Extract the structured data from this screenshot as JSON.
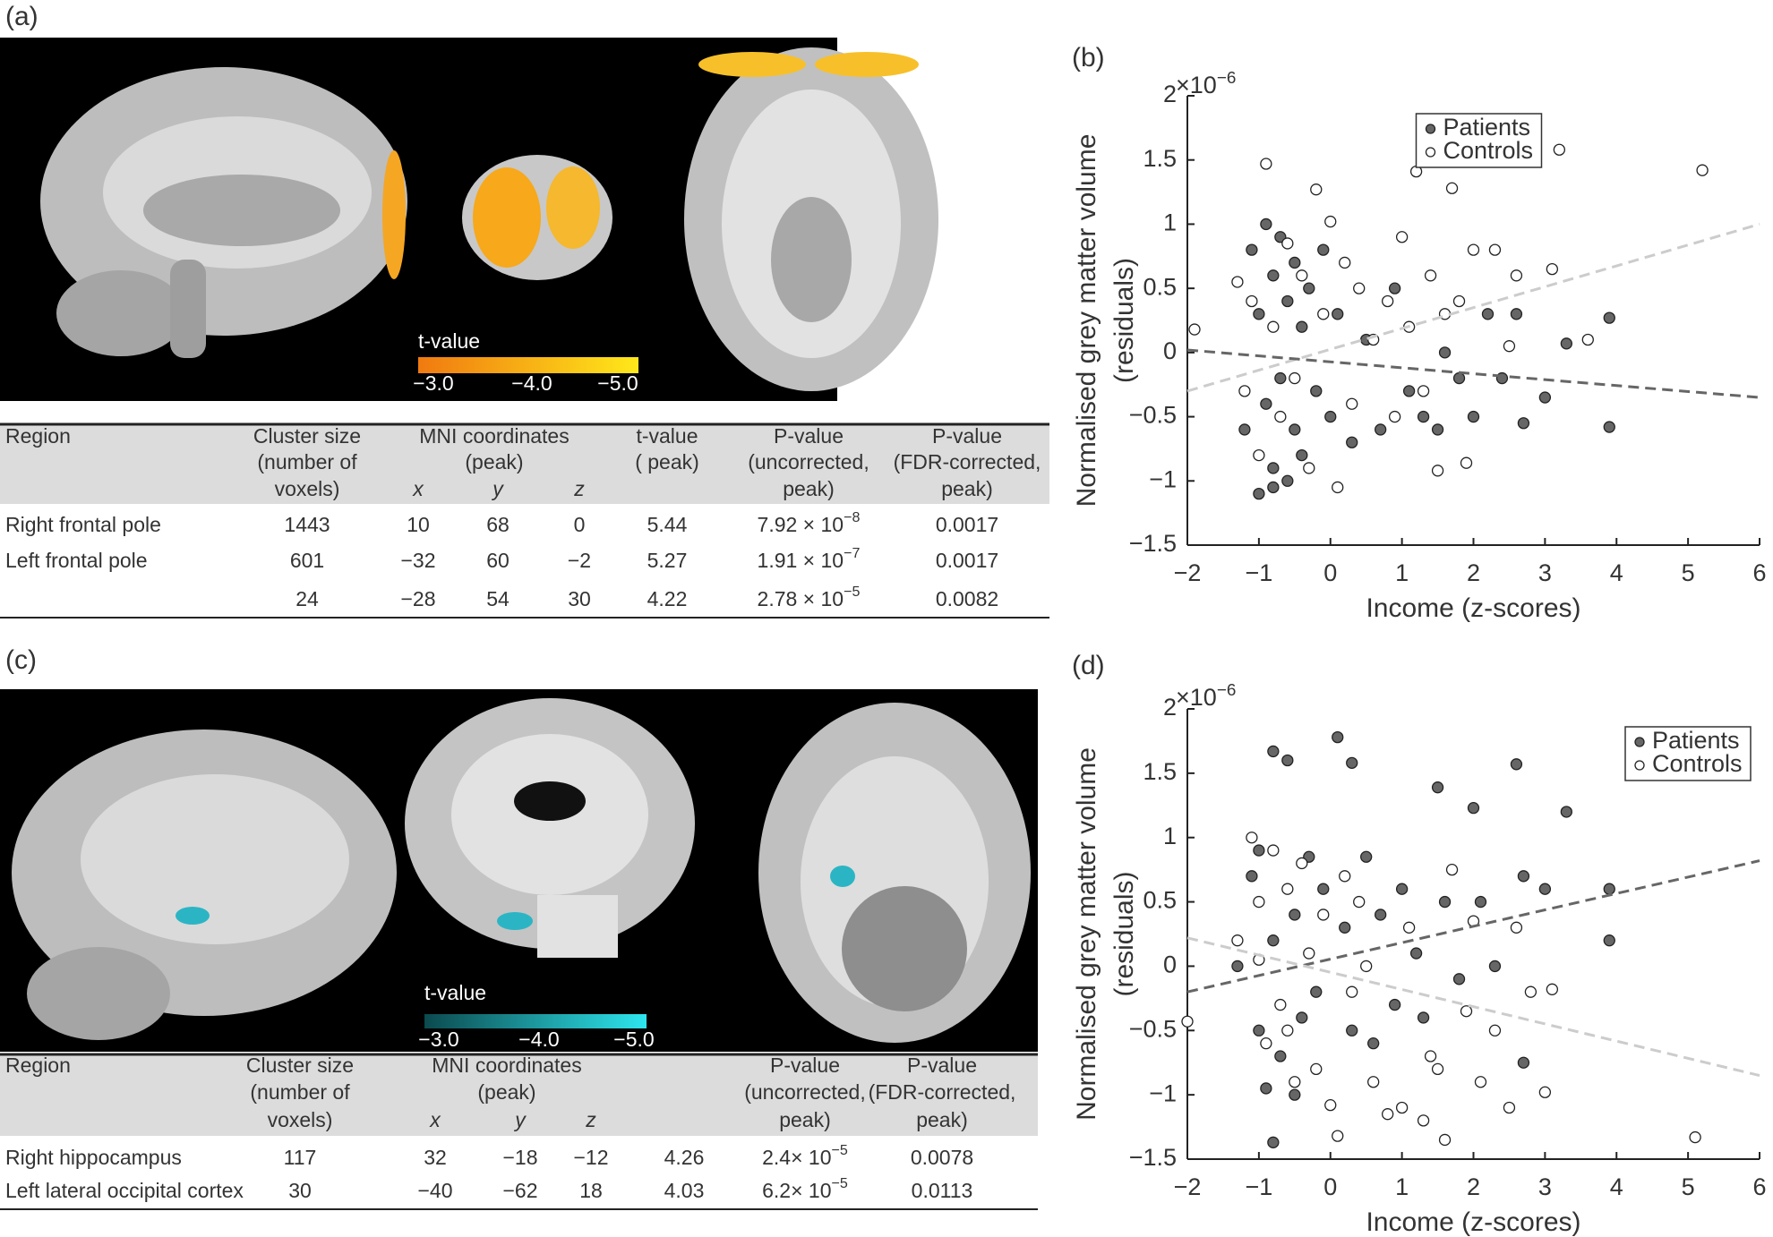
{
  "figure": {
    "panel_a": {
      "label": "(a)",
      "colorbar": {
        "title": "t-value",
        "ticks": [
          "−3.0",
          "−4.0",
          "−5.0"
        ]
      },
      "table": {
        "header": {
          "region": "Region",
          "cluster": [
            "Cluster size",
            "(number of",
            "voxels)"
          ],
          "mni": [
            "MNI coordinates",
            "(peak)"
          ],
          "mni_axes": [
            "x",
            "y",
            "z"
          ],
          "t": [
            "t-value",
            "( peak)"
          ],
          "p_unc": [
            "P-value",
            "(uncorrected,",
            "peak)"
          ],
          "p_fdr": [
            "P-value",
            "(FDR-corrected,",
            "peak)"
          ]
        },
        "rows": [
          [
            "Right frontal pole",
            "1443",
            "10",
            "68",
            "0",
            "5.44",
            {
              "base": "7.92 × 10",
              "exp": "−8"
            },
            "0.0017"
          ],
          [
            "Left frontal pole",
            "601",
            "−32",
            "60",
            "−2",
            "5.27",
            {
              "base": "1.91 × 10",
              "exp": "−7"
            },
            "0.0017"
          ],
          [
            null,
            "24",
            "−28",
            "54",
            "30",
            "4.22",
            {
              "base": "2.78 × 10",
              "exp": "−5"
            },
            "0.0082"
          ]
        ]
      }
    },
    "panel_c": {
      "label": "(c)",
      "colorbar": {
        "title": "t-value",
        "ticks": [
          "−3.0",
          "−4.0",
          "−5.0"
        ]
      },
      "table": {
        "header": {
          "region": "Region",
          "cluster": [
            "Cluster size",
            "(number of",
            "voxels)"
          ],
          "mni": [
            "MNI coordinates",
            "(peak)"
          ],
          "mni_axes": [
            "x",
            "y",
            "z"
          ],
          "p_unc": [
            "P-value",
            "(uncorrected,",
            "peak)"
          ],
          "p_fdr": [
            "P-value",
            "(FDR-corrected,",
            "peak)"
          ]
        },
        "rows": [
          [
            "Right hippocampus",
            "117",
            "32",
            "−18",
            "−12",
            "4.26",
            {
              "base": "2.4× 10",
              "exp": "−5"
            },
            "0.0078"
          ],
          [
            "Left lateral occipital cortex",
            "30",
            "−40",
            "−62",
            "18",
            "4.03",
            {
              "base": "6.2× 10",
              "exp": "−5"
            },
            "0.0113"
          ]
        ]
      }
    }
  },
  "chart_data": [
    {
      "type": "scatter",
      "panel_label": "(b)",
      "ylabel": [
        "Normalised grey matter volume",
        "(residuals)"
      ],
      "xlabel": "Income (z-scores)",
      "multiplier": {
        "base": "×10",
        "exp": "−6"
      },
      "xlim": [
        -2,
        6
      ],
      "ylim": [
        -1.5,
        2
      ],
      "xticks": [
        {
          "value": -2,
          "label": "−2"
        },
        {
          "value": -1,
          "label": "−1"
        },
        0,
        1,
        2,
        3,
        4,
        5,
        6
      ],
      "yticks": [
        {
          "value": -1.5,
          "label": "−1.5"
        },
        {
          "value": -1,
          "label": "−1"
        },
        {
          "value": -0.5,
          "label": "−0.5"
        },
        0,
        0.5,
        1,
        1.5,
        2
      ],
      "legend": "upper center",
      "series": [
        {
          "name": "Patients",
          "color": "#666666",
          "x": [
            -1.2,
            -1.1,
            -1.0,
            -1.0,
            -0.9,
            -0.9,
            -0.8,
            -0.8,
            -0.7,
            -0.7,
            -0.6,
            -0.6,
            -0.5,
            -0.5,
            -0.4,
            -0.4,
            -0.3,
            -0.2,
            -0.1,
            0.0,
            0.1,
            0.3,
            0.5,
            0.7,
            0.9,
            1.1,
            1.3,
            1.5,
            1.6,
            1.8,
            2.0,
            2.2,
            2.4,
            2.6,
            2.7,
            3.0,
            3.3,
            3.9,
            3.9,
            -0.8
          ],
          "values": [
            -0.6,
            0.8,
            -1.1,
            0.3,
            1.0,
            -0.4,
            0.6,
            -0.9,
            0.9,
            -0.2,
            0.4,
            -1.0,
            0.7,
            -0.6,
            0.2,
            -0.8,
            0.5,
            -0.3,
            0.8,
            -0.5,
            0.3,
            -0.7,
            0.1,
            -0.6,
            0.5,
            -0.3,
            -0.5,
            -0.6,
            0.0,
            -0.2,
            -0.5,
            0.3,
            -0.2,
            0.3,
            -0.55,
            -0.35,
            0.07,
            0.27,
            -0.58,
            -1.05
          ]
        },
        {
          "name": "Controls",
          "color": "#ffffff",
          "x": [
            -1.9,
            -1.3,
            -1.2,
            -1.1,
            -1.0,
            -0.9,
            -0.8,
            -0.7,
            -0.6,
            -0.5,
            -0.4,
            -0.3,
            -0.2,
            -0.1,
            0.0,
            0.1,
            0.2,
            0.3,
            0.4,
            0.6,
            0.8,
            0.9,
            1.0,
            1.1,
            1.2,
            1.3,
            1.4,
            1.5,
            1.6,
            1.7,
            1.9,
            2.0,
            2.3,
            2.5,
            2.6,
            3.1,
            3.2,
            3.6,
            5.2,
            1.8
          ],
          "values": [
            0.18,
            0.55,
            -0.3,
            0.4,
            -0.8,
            1.47,
            0.2,
            -0.5,
            0.85,
            -0.2,
            0.6,
            -0.9,
            1.27,
            0.3,
            1.02,
            -1.05,
            0.7,
            -0.4,
            0.5,
            0.1,
            0.4,
            -0.5,
            0.9,
            0.2,
            1.41,
            -0.3,
            0.6,
            -0.92,
            0.3,
            1.28,
            -0.86,
            0.8,
            0.8,
            0.05,
            0.6,
            0.65,
            1.58,
            0.1,
            1.42,
            0.4
          ]
        }
      ],
      "fit_lines": [
        {
          "color": "#cccccc",
          "x": [
            -2,
            6
          ],
          "values": [
            -0.3,
            1.0
          ]
        },
        {
          "color": "#666666",
          "x": [
            -2,
            6
          ],
          "values": [
            0.02,
            -0.35
          ]
        }
      ]
    },
    {
      "type": "scatter",
      "panel_label": "(d)",
      "ylabel": [
        "Normalised grey matter volume",
        "(residuals)"
      ],
      "xlabel": "Income (z-scores)",
      "multiplier": {
        "base": "×10",
        "exp": "−6"
      },
      "xlim": [
        -2,
        6
      ],
      "ylim": [
        -1.5,
        2
      ],
      "xticks": [
        {
          "value": -2,
          "label": "−2"
        },
        {
          "value": -1,
          "label": "−1"
        },
        0,
        1,
        2,
        3,
        4,
        5,
        6
      ],
      "yticks": [
        {
          "value": -1.5,
          "label": "−1.5"
        },
        {
          "value": -1,
          "label": "−1"
        },
        {
          "value": -0.5,
          "label": "−0.5"
        },
        0,
        0.5,
        1,
        1.5,
        2
      ],
      "legend": "upper right",
      "series": [
        {
          "name": "Patients",
          "color": "#666666",
          "x": [
            -1.3,
            -1.1,
            -1.0,
            -1.0,
            -0.9,
            -0.8,
            -0.8,
            -0.7,
            -0.6,
            -0.5,
            -0.4,
            -0.3,
            -0.2,
            -0.1,
            0.1,
            0.2,
            0.3,
            0.5,
            0.7,
            0.9,
            1.0,
            1.2,
            1.3,
            1.5,
            1.6,
            1.8,
            2.0,
            2.1,
            2.3,
            2.6,
            2.7,
            2.7,
            3.0,
            3.3,
            3.9,
            3.9,
            0.3,
            -0.5,
            0.6,
            -0.8
          ],
          "values": [
            0.0,
            0.7,
            -0.5,
            0.9,
            -0.95,
            1.67,
            0.2,
            -0.7,
            1.6,
            0.4,
            -0.4,
            0.85,
            -0.2,
            0.6,
            1.78,
            0.3,
            -0.5,
            0.85,
            0.4,
            -0.3,
            0.6,
            0.1,
            -0.4,
            1.39,
            0.5,
            -0.1,
            1.23,
            0.5,
            0.0,
            1.57,
            -0.75,
            0.7,
            0.6,
            1.2,
            0.6,
            0.2,
            1.58,
            -1.0,
            -0.6,
            -1.37
          ]
        },
        {
          "name": "Controls",
          "color": "#ffffff",
          "x": [
            -2.0,
            -1.3,
            -1.1,
            -1.0,
            -0.9,
            -0.8,
            -0.7,
            -0.6,
            -0.5,
            -0.4,
            -0.3,
            -0.2,
            -0.1,
            0.0,
            0.1,
            0.2,
            0.3,
            0.4,
            0.6,
            0.8,
            1.0,
            1.1,
            1.3,
            1.4,
            1.6,
            1.7,
            1.9,
            2.1,
            2.3,
            2.5,
            2.6,
            2.8,
            3.1,
            3.0,
            5.1,
            -1.0,
            -0.6,
            0.5,
            1.5,
            2.0
          ],
          "values": [
            -0.43,
            0.2,
            1.0,
            0.5,
            -0.6,
            0.9,
            -0.3,
            0.6,
            -0.9,
            0.8,
            0.1,
            -0.8,
            0.4,
            -1.08,
            -1.32,
            0.7,
            -0.2,
            0.5,
            -0.9,
            -1.15,
            -1.1,
            0.3,
            -1.2,
            -0.7,
            -1.35,
            0.75,
            -0.35,
            -0.9,
            -0.5,
            -1.1,
            0.3,
            -0.2,
            -0.18,
            -0.98,
            -1.33,
            0.05,
            -0.5,
            0.0,
            -0.8,
            0.35
          ]
        }
      ],
      "fit_lines": [
        {
          "color": "#666666",
          "x": [
            -2,
            6
          ],
          "values": [
            -0.2,
            0.82
          ]
        },
        {
          "color": "#cccccc",
          "x": [
            -2,
            6
          ],
          "values": [
            0.22,
            -0.85
          ]
        }
      ]
    }
  ]
}
